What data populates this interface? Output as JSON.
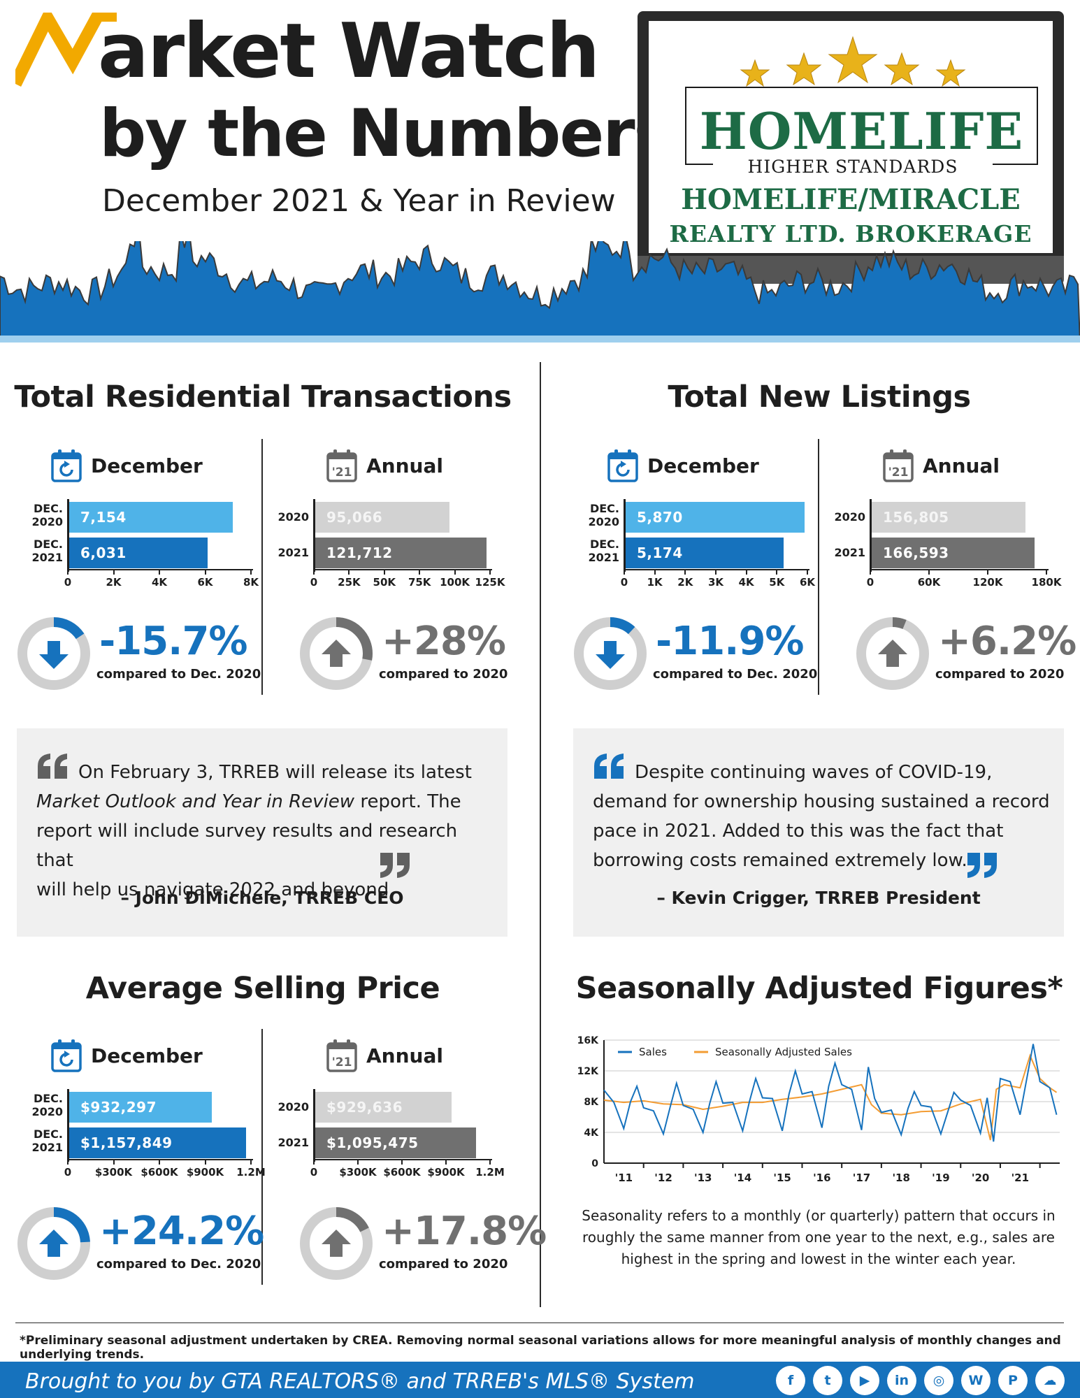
{
  "header": {
    "title_line1": "arket Watch",
    "title_line2": "by the Numbers",
    "subtitle": "December 2021 & Year in Review",
    "brand": {
      "name": "HOMELIFE",
      "tagline": "HIGHER STANDARDS",
      "office_line1": "HOMELIFE/MIRACLE",
      "office_line2": "REALTY LTD. BROKERAGE"
    }
  },
  "colors": {
    "blue_light": "#4fb3e8",
    "blue_dark": "#1672bd",
    "grey_light": "#d2d2d2",
    "grey_dark": "#707070",
    "brand_green": "#1d6b45",
    "logo_yellow": "#f2a900",
    "sa_orange": "#f39c33"
  },
  "sections": {
    "transactions": {
      "title": "Total Residential Transactions",
      "december": {
        "label": "December",
        "rows": [
          {
            "label_line1": "DEC.",
            "label_line2": "2020",
            "value_text": "7,154",
            "value": 7154
          },
          {
            "label_line1": "DEC.",
            "label_line2": "2021",
            "value_text": "6,031",
            "value": 6031
          }
        ],
        "axis_max": 8000,
        "ticks": [
          "0",
          "2K",
          "4K",
          "6K",
          "8K"
        ],
        "change": "-15.7%",
        "change_fraction": 0.157,
        "direction": "down",
        "note": "compared to Dec. 2020"
      },
      "annual": {
        "label": "Annual",
        "icon_year": "'21",
        "rows": [
          {
            "label_line1": "2020",
            "label_line2": "",
            "value_text": "95,066",
            "value": 95066
          },
          {
            "label_line1": "2021",
            "label_line2": "",
            "value_text": "121,712",
            "value": 121712
          }
        ],
        "axis_max": 125000,
        "ticks": [
          "0",
          "25K",
          "50K",
          "75K",
          "100K",
          "125K"
        ],
        "change": "+28%",
        "change_fraction": 0.28,
        "direction": "up",
        "note": "compared to 2020"
      }
    },
    "listings": {
      "title": "Total New Listings",
      "december": {
        "label": "December",
        "rows": [
          {
            "label_line1": "DEC.",
            "label_line2": "2020",
            "value_text": "5,870",
            "value": 5870
          },
          {
            "label_line1": "DEC.",
            "label_line2": "2021",
            "value_text": "5,174",
            "value": 5174
          }
        ],
        "axis_max": 6000,
        "ticks": [
          "0",
          "1K",
          "2K",
          "3K",
          "4K",
          "5K",
          "6K"
        ],
        "change": "-11.9%",
        "change_fraction": 0.119,
        "direction": "down",
        "note": "compared to Dec. 2020"
      },
      "annual": {
        "label": "Annual",
        "icon_year": "'21",
        "rows": [
          {
            "label_line1": "2020",
            "label_line2": "",
            "value_text": "156,805",
            "value": 156805
          },
          {
            "label_line1": "2021",
            "label_line2": "",
            "value_text": "166,593",
            "value": 166593
          }
        ],
        "axis_max": 180000,
        "ticks": [
          "0",
          "60K",
          "120K",
          "180K"
        ],
        "change": "+6.2%",
        "change_fraction": 0.062,
        "direction": "up",
        "note": "compared to 2020"
      }
    },
    "price": {
      "title": "Average Selling Price",
      "december": {
        "label": "December",
        "rows": [
          {
            "label_line1": "DEC.",
            "label_line2": "2020",
            "value_text": "$932,297",
            "value": 932297
          },
          {
            "label_line1": "DEC.",
            "label_line2": "2021",
            "value_text": "$1,157,849",
            "value": 1157849
          }
        ],
        "axis_max": 1200000,
        "ticks": [
          "0",
          "$300K",
          "$600K",
          "$900K",
          "1.2M"
        ],
        "change": "+24.2%",
        "change_fraction": 0.242,
        "direction": "up",
        "note": "compared to Dec. 2020"
      },
      "annual": {
        "label": "Annual",
        "icon_year": "'21",
        "rows": [
          {
            "label_line1": "2020",
            "label_line2": "",
            "value_text": "$929,636",
            "value": 929636
          },
          {
            "label_line1": "2021",
            "label_line2": "",
            "value_text": "$1,095,475",
            "value": 1095475
          }
        ],
        "axis_max": 1200000,
        "ticks": [
          "0",
          "$300K",
          "$600K",
          "$900K",
          "1.2M"
        ],
        "change": "+17.8%",
        "change_fraction": 0.178,
        "direction": "up",
        "note": "compared to 2020"
      }
    },
    "seasonal": {
      "title": "Seasonally Adjusted Figures*",
      "note": "Seasonality refers to a monthly (or quarterly) pattern that occurs in roughly the same manner from one year to the next, e.g., sales are highest in the spring and lowest in the winter each year."
    }
  },
  "quotes": {
    "left": {
      "text_line1": "On February 3, TRREB will release its latest",
      "text_italic": "Market Outlook and Year in Review",
      "text_line2_rest": " report. The",
      "text_line3": "report will include survey results and research that",
      "text_line4": "will help us navigate 2022 and beyond.",
      "author": "– John DiMichele, TRREB CEO"
    },
    "right": {
      "text_line1": "Despite continuing waves of COVID-19,",
      "text_line2": "demand for ownership housing sustained a record",
      "text_line3": "pace in 2021. Added to this was the fact that",
      "text_line4": "borrowing costs remained extremely low.",
      "author": "– Kevin Crigger, TRREB President"
    }
  },
  "chart_data": [
    {
      "type": "bar",
      "title": "Total Residential Transactions — December",
      "categories": [
        "DEC. 2020",
        "DEC. 2021"
      ],
      "values": [
        7154,
        6031
      ],
      "xlim": [
        0,
        8000
      ]
    },
    {
      "type": "bar",
      "title": "Total Residential Transactions — Annual",
      "categories": [
        "2020",
        "2021"
      ],
      "values": [
        95066,
        121712
      ],
      "xlim": [
        0,
        125000
      ]
    },
    {
      "type": "bar",
      "title": "Total New Listings — December",
      "categories": [
        "DEC. 2020",
        "DEC. 2021"
      ],
      "values": [
        5870,
        5174
      ],
      "xlim": [
        0,
        6000
      ]
    },
    {
      "type": "bar",
      "title": "Total New Listings — Annual",
      "categories": [
        "2020",
        "2021"
      ],
      "values": [
        156805,
        166593
      ],
      "xlim": [
        0,
        180000
      ]
    },
    {
      "type": "bar",
      "title": "Average Selling Price — December",
      "categories": [
        "DEC. 2020",
        "DEC. 2021"
      ],
      "values": [
        932297,
        1157849
      ],
      "xlim": [
        0,
        1200000
      ]
    },
    {
      "type": "bar",
      "title": "Average Selling Price — Annual",
      "categories": [
        "2020",
        "2021"
      ],
      "values": [
        929636,
        1095475
      ],
      "xlim": [
        0,
        1200000
      ]
    },
    {
      "type": "line",
      "title": "Seasonally Adjusted Figures*",
      "x_tick_labels": [
        "'11",
        "'12",
        "'13",
        "'14",
        "'15",
        "'16",
        "'17",
        "'18",
        "'19",
        "'20",
        "'21"
      ],
      "y_tick_labels": [
        "0",
        "4K",
        "8K",
        "12K",
        "16K"
      ],
      "ylim": [
        0,
        16000
      ],
      "xlim": [
        2010.5,
        2022.0
      ],
      "grid": true,
      "legend": "top-left",
      "series": [
        {
          "name": "Sales",
          "color": "#1672bd",
          "x": [
            2010.5,
            2010.75,
            2011.0,
            2011.17,
            2011.33,
            2011.5,
            2011.75,
            2012.0,
            2012.17,
            2012.33,
            2012.5,
            2012.75,
            2013.0,
            2013.17,
            2013.33,
            2013.5,
            2013.75,
            2014.0,
            2014.17,
            2014.33,
            2014.5,
            2014.75,
            2015.0,
            2015.17,
            2015.33,
            2015.5,
            2015.75,
            2016.0,
            2016.17,
            2016.33,
            2016.5,
            2016.75,
            2017.0,
            2017.17,
            2017.33,
            2017.5,
            2017.75,
            2018.0,
            2018.17,
            2018.33,
            2018.5,
            2018.75,
            2019.0,
            2019.17,
            2019.33,
            2019.5,
            2019.75,
            2020.0,
            2020.17,
            2020.33,
            2020.5,
            2020.75,
            2021.0,
            2021.17,
            2021.33,
            2021.5,
            2021.75,
            2021.92
          ],
          "y": [
            9500,
            7900,
            4500,
            8000,
            10000,
            7200,
            6800,
            3800,
            7300,
            10400,
            7500,
            7000,
            4000,
            7800,
            10600,
            7800,
            7900,
            4200,
            8000,
            11000,
            8500,
            8400,
            4200,
            9000,
            12000,
            9000,
            9300,
            4600,
            10000,
            13000,
            10200,
            9600,
            4300,
            12500,
            8400,
            6600,
            6900,
            3700,
            7100,
            9300,
            7500,
            7300,
            3800,
            6600,
            9200,
            8200,
            7500,
            3900,
            8500,
            2800,
            11000,
            10600,
            6300,
            11000,
            15500,
            10600,
            9800,
            6300
          ]
        },
        {
          "name": "Seasonally Adjusted Sales",
          "color": "#f39c33",
          "x": [
            2010.5,
            2011.0,
            2011.5,
            2012.0,
            2012.5,
            2013.0,
            2013.5,
            2014.0,
            2014.5,
            2015.0,
            2015.5,
            2016.0,
            2016.5,
            2017.0,
            2017.25,
            2017.5,
            2018.0,
            2018.5,
            2019.0,
            2019.5,
            2020.0,
            2020.25,
            2020.4,
            2020.6,
            2021.0,
            2021.25,
            2021.5,
            2021.75,
            2021.92
          ],
          "y": [
            8200,
            7900,
            8100,
            7700,
            7600,
            7000,
            7400,
            7900,
            7900,
            8300,
            8600,
            9000,
            9600,
            10200,
            7600,
            6500,
            6300,
            6700,
            6800,
            7700,
            8300,
            3000,
            9600,
            10200,
            9800,
            14000,
            11000,
            9800,
            9200
          ]
        }
      ]
    }
  ],
  "footer": {
    "footnote": "*Preliminary seasonal adjustment undertaken by CREA. Removing normal seasonal variations allows for more meaningful analysis of monthly changes and underlying trends.",
    "credit": "Brought to you by GTA REALTORS® and TRREB's MLS® System",
    "social": [
      "facebook-icon",
      "twitter-icon",
      "youtube-icon",
      "linkedin-icon",
      "instagram-icon",
      "wordpress-icon",
      "pinterest-icon",
      "soundcloud-icon"
    ]
  }
}
